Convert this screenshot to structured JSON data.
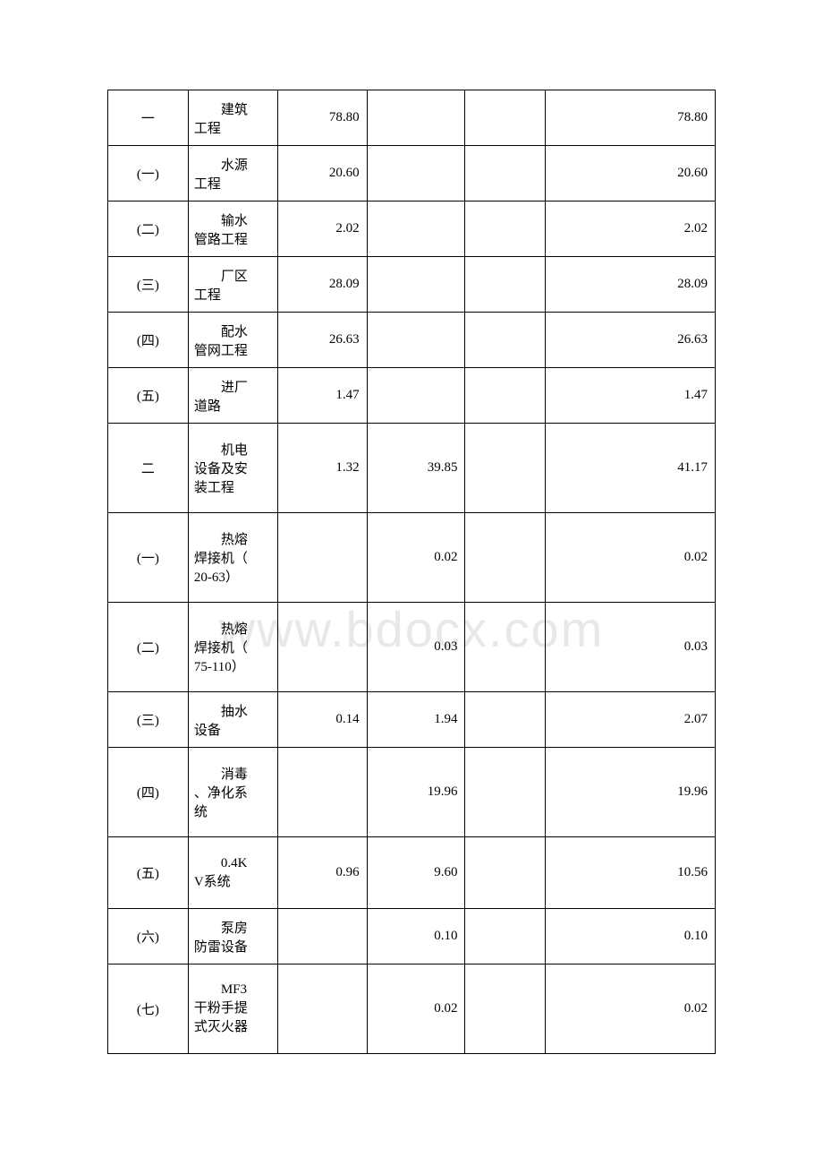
{
  "watermark": "www.bdocx.com",
  "table": {
    "rows": [
      {
        "h": "h-small",
        "c0": "一",
        "c1a": "建筑",
        "c1b": "工程",
        "c2": "78.80",
        "c3": "",
        "c4": "",
        "c5": "78.80"
      },
      {
        "h": "h-small",
        "c0": "(一)",
        "c1a": "水源",
        "c1b": "工程",
        "c2": "20.60",
        "c3": "",
        "c4": "",
        "c5": "20.60"
      },
      {
        "h": "h-small",
        "c0": "(二)",
        "c1a": "输水",
        "c1b": "管路工程",
        "c2": "2.02",
        "c3": "",
        "c4": "",
        "c5": "2.02"
      },
      {
        "h": "h-small",
        "c0": "(三)",
        "c1a": "厂区",
        "c1b": "工程",
        "c2": "28.09",
        "c3": "",
        "c4": "",
        "c5": "28.09"
      },
      {
        "h": "h-small",
        "c0": "(四)",
        "c1a": "配水",
        "c1b": "管网工程",
        "c2": "26.63",
        "c3": "",
        "c4": "",
        "c5": "26.63"
      },
      {
        "h": "h-small",
        "c0": "(五)",
        "c1a": "进厂",
        "c1b": "道路",
        "c2": "1.47",
        "c3": "",
        "c4": "",
        "c5": "1.47"
      },
      {
        "h": "h-large",
        "c0": "二",
        "c1a": "机电",
        "c1b": "设备及安",
        "c1c": "装工程",
        "c2": "1.32",
        "c3": "39.85",
        "c4": "",
        "c5": "41.17"
      },
      {
        "h": "h-large",
        "c0": "(一)",
        "c1a": "热熔",
        "c1b": "焊接机（",
        "c1c": "20-63）",
        "c2": "",
        "c3": "0.02",
        "c4": "",
        "c5": "0.02"
      },
      {
        "h": "h-large",
        "c0": "(二)",
        "c1a": "热熔",
        "c1b": "焊接机（",
        "c1c": "75-110）",
        "c2": "",
        "c3": "0.03",
        "c4": "",
        "c5": "0.03"
      },
      {
        "h": "h-small",
        "c0": "(三)",
        "c1a": "抽水",
        "c1b": "设备",
        "c2": "0.14",
        "c3": "1.94",
        "c4": "",
        "c5": "2.07"
      },
      {
        "h": "h-large",
        "c0": "(四)",
        "c1a": "消毒",
        "c1b": "、净化系",
        "c1c": "统",
        "c2": "",
        "c3": "19.96",
        "c4": "",
        "c5": "19.96"
      },
      {
        "h": "h-med",
        "c0": "(五)",
        "c1a": "0.4K",
        "c1b": "V系统",
        "c2": "0.96",
        "c3": "9.60",
        "c4": "",
        "c5": "10.56"
      },
      {
        "h": "h-small",
        "c0": "(六)",
        "c1a": "泵房",
        "c1b": "防雷设备",
        "c2": "",
        "c3": "0.10",
        "c4": "",
        "c5": "0.10"
      },
      {
        "h": "h-large",
        "c0": "(七)",
        "c1a": "MF3",
        "c1b": "干粉手提",
        "c1c": "式灭火器",
        "c2": "",
        "c3": "0.02",
        "c4": "",
        "c5": "0.02"
      }
    ]
  }
}
